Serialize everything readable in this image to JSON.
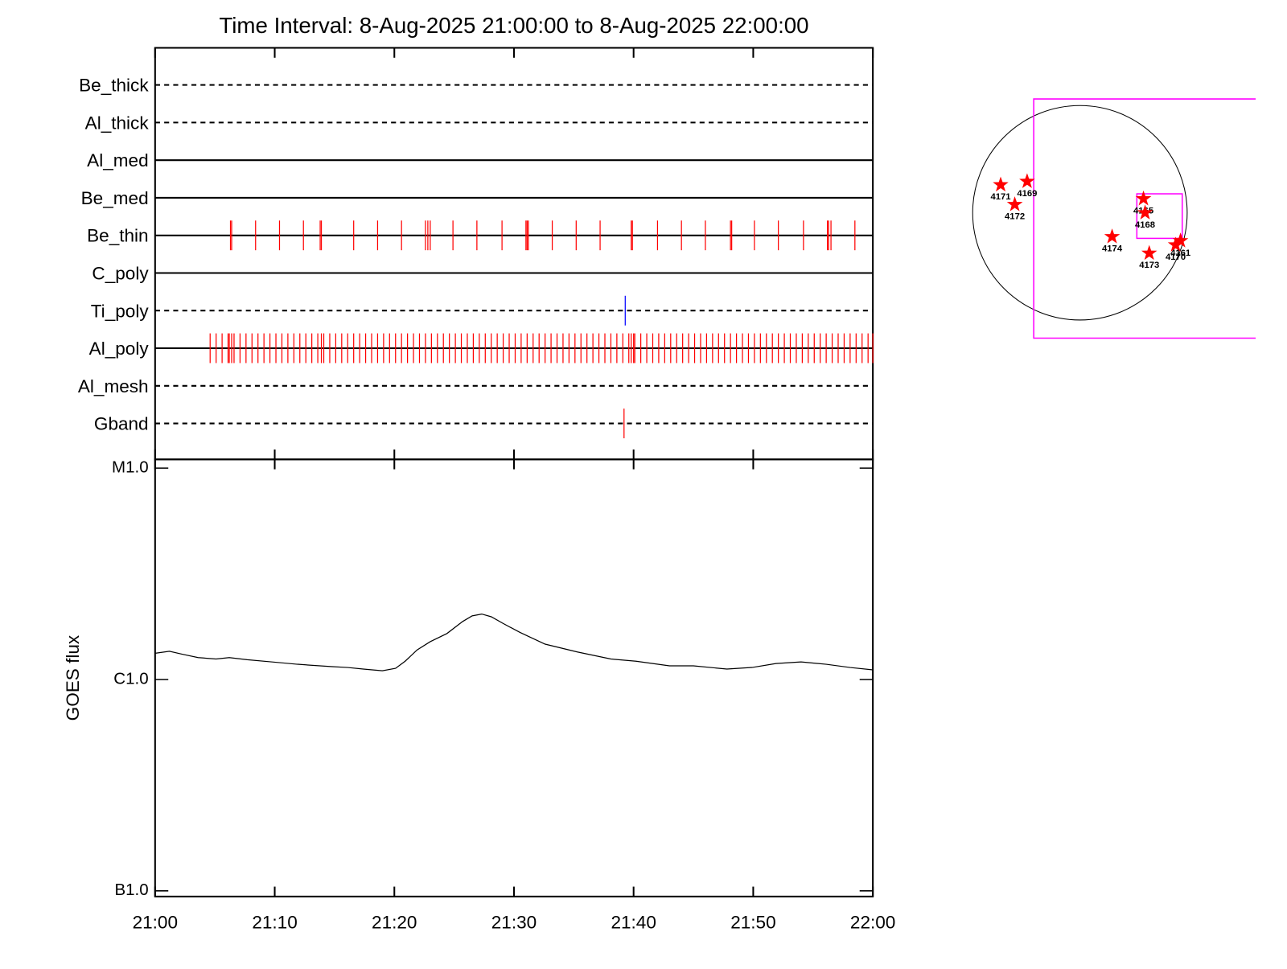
{
  "chart_data": [
    {
      "type": "event",
      "title": "Time Interval:  8-Aug-2025 21:00:00 to  8-Aug-2025 22:00:00",
      "xlim": [
        0,
        60
      ],
      "series": [
        {
          "name": "Be_thick",
          "line": "dashed",
          "values": []
        },
        {
          "name": "Al_thick",
          "line": "dashed",
          "values": []
        },
        {
          "name": "Al_med",
          "line": "solid",
          "values": []
        },
        {
          "name": "Be_med",
          "line": "solid",
          "values": []
        },
        {
          "name": "Be_thin",
          "line": "solid",
          "color": "#ff0000",
          "values": [
            6.3,
            6.4,
            8.4,
            10.4,
            12.4,
            13.8,
            13.9,
            16.6,
            18.6,
            20.6,
            22.6,
            22.8,
            23.0,
            24.9,
            26.9,
            29.0,
            31.0,
            31.1,
            31.2,
            33.2,
            35.2,
            37.2,
            39.8,
            39.9,
            42.0,
            44.0,
            46.0,
            48.1,
            48.2,
            50.1,
            52.1,
            54.2,
            56.2,
            56.3,
            56.5,
            58.5
          ]
        },
        {
          "name": "C_poly",
          "line": "solid",
          "values": []
        },
        {
          "name": "Ti_poly",
          "line": "dashed",
          "color": "#0000ff",
          "values": [
            39.3
          ]
        },
        {
          "name": "Al_poly",
          "line": "solid",
          "color": "#ff0000",
          "values": [
            4.6,
            5.1,
            5.6,
            6.1,
            6.2,
            6.4,
            6.6,
            7.1,
            7.6,
            8.1,
            8.6,
            9.1,
            9.6,
            10.1,
            10.6,
            11.1,
            11.6,
            12.1,
            12.6,
            13.1,
            13.6,
            13.9,
            14.1,
            14.6,
            15.1,
            15.6,
            16.1,
            16.6,
            17.1,
            17.6,
            18.1,
            18.6,
            19.1,
            19.6,
            20.1,
            20.6,
            21.1,
            21.6,
            22.1,
            22.6,
            23.1,
            23.6,
            24.1,
            24.6,
            25.1,
            25.6,
            26.1,
            26.6,
            27.1,
            27.6,
            28.1,
            28.6,
            29.1,
            29.6,
            30.1,
            30.6,
            31.1,
            31.6,
            32.1,
            32.6,
            33.1,
            33.6,
            34.1,
            34.6,
            35.1,
            35.6,
            36.1,
            36.6,
            37.1,
            37.6,
            38.1,
            38.6,
            39.1,
            39.6,
            39.8,
            40.0,
            40.1,
            40.6,
            41.1,
            41.6,
            42.1,
            42.6,
            43.1,
            43.6,
            44.1,
            44.6,
            45.1,
            45.6,
            46.1,
            46.6,
            47.1,
            47.6,
            48.1,
            48.6,
            49.1,
            49.6,
            50.1,
            50.6,
            51.1,
            51.6,
            52.1,
            52.6,
            53.1,
            53.6,
            54.1,
            54.6,
            55.1,
            55.6,
            56.1,
            56.6,
            57.1,
            57.6,
            58.1,
            58.6,
            59.1,
            59.6,
            60.0
          ]
        },
        {
          "name": "Al_mesh",
          "line": "dashed",
          "values": []
        },
        {
          "name": "Gband",
          "line": "dashed",
          "color": "#ff0000",
          "values": [
            39.2
          ]
        }
      ]
    },
    {
      "type": "line",
      "ylabel": "GOES flux",
      "log": true,
      "color": "#000000",
      "xlim": [
        0,
        60
      ],
      "xticks": [
        {
          "value": 0,
          "label": "21:00"
        },
        {
          "value": 10,
          "label": "21:10"
        },
        {
          "value": 20,
          "label": "21:20"
        },
        {
          "value": 30,
          "label": "21:30"
        },
        {
          "value": 40,
          "label": "21:40"
        },
        {
          "value": 50,
          "label": "21:50"
        },
        {
          "value": 60,
          "label": "22:00"
        }
      ],
      "ylim": [
        9.4e-08,
        1.1e-05
      ],
      "yticks": [
        {
          "value": 1e-07,
          "label": "B1.0"
        },
        {
          "value": 1e-06,
          "label": "C1.0"
        },
        {
          "value": 1e-05,
          "label": "M1.0"
        }
      ],
      "x": [
        0,
        1.2,
        2.2,
        3.6,
        5.1,
        6.2,
        7.7,
        9.8,
        11.9,
        14.8,
        16.1,
        17.4,
        19.0,
        20.1,
        20.9,
        21.9,
        23.0,
        24.4,
        25.7,
        26.5,
        27.3,
        28.1,
        29.1,
        30.5,
        32.6,
        35.3,
        38.1,
        40.2,
        43.0,
        45.0,
        47.8,
        49.9,
        51.9,
        54.0,
        56.1,
        58.1,
        60.0
      ],
      "values": [
        1.33e-06,
        1.36e-06,
        1.32e-06,
        1.27e-06,
        1.25e-06,
        1.27e-06,
        1.24e-06,
        1.21e-06,
        1.18e-06,
        1.15e-06,
        1.14e-06,
        1.12e-06,
        1.1e-06,
        1.13e-06,
        1.22e-06,
        1.38e-06,
        1.51e-06,
        1.65e-06,
        1.88e-06,
        2e-06,
        2.04e-06,
        1.98e-06,
        1.84e-06,
        1.67e-06,
        1.47e-06,
        1.35e-06,
        1.25e-06,
        1.22e-06,
        1.16e-06,
        1.16e-06,
        1.12e-06,
        1.14e-06,
        1.19e-06,
        1.21e-06,
        1.18e-06,
        1.14e-06,
        1.11e-06
      ]
    },
    {
      "type": "map",
      "color": "#ff0000",
      "labels": [
        "4171",
        "4169",
        "4172",
        "4165",
        "4168",
        "4174",
        "4173",
        "4170",
        "4161"
      ],
      "x": [
        -702,
        -468,
        -577,
        563,
        577,
        285,
        614,
        848,
        891
      ],
      "y": [
        248,
        278,
        73,
        124,
        0,
        -212,
        -358,
        -285,
        -248
      ]
    }
  ]
}
